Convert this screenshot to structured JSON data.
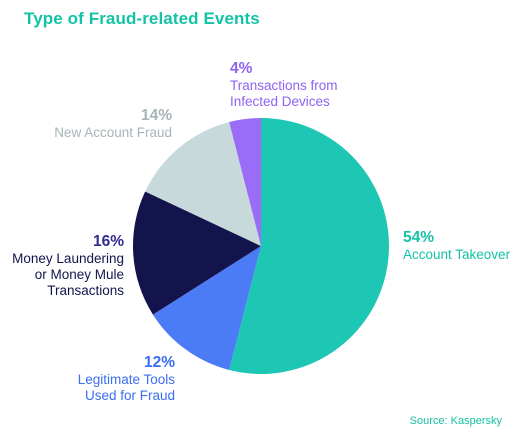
{
  "chart_data": {
    "type": "pie",
    "title": "Type of Fraud-related Events",
    "source": "Source: Kaspersky",
    "slices": [
      {
        "label": "Account Takeover",
        "percent_label": "54%",
        "value": 54,
        "color": "#1ec7b3",
        "label_color": "#14c2a6"
      },
      {
        "label": "Legitimate Tools\nUsed for Fraud",
        "percent_label": "12%",
        "value": 12,
        "color": "#4b7cf6",
        "label_color": "#3a6ef0"
      },
      {
        "label": "Money Laundering\nor Money Mule\nTransactions",
        "percent_label": "16%",
        "value": 16,
        "color": "#14144d",
        "label_color": "#14144d",
        "pct_color": "#2f2a8f"
      },
      {
        "label": "New Account Fraud",
        "percent_label": "14%",
        "value": 14,
        "color": "#c8d9dc",
        "label_color": "#a7b4b7"
      },
      {
        "label": "Transactions from\nInfected Devices",
        "percent_label": "4%",
        "value": 4,
        "color": "#9b6cf8",
        "label_color": "#8e62f2"
      }
    ]
  }
}
